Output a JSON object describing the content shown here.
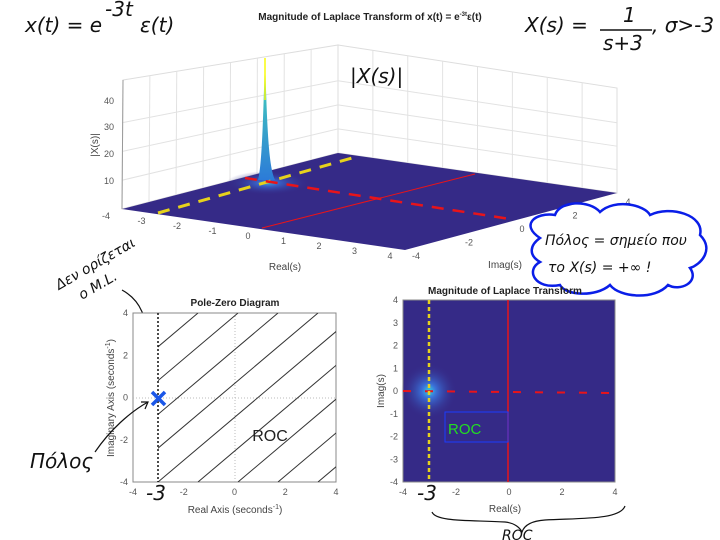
{
  "annotations": {
    "signal": "x(t) = e",
    "signal_exp": "-3t",
    "signal_tail": "ε(t)",
    "transform_lhs": "X(s) =",
    "transform_num": "1",
    "transform_den": "s+3",
    "transform_cond": ", σ>-3",
    "magnitude": "|X(s)|",
    "cloud_line1": "Πόλος = σημείο που",
    "cloud_line2": "το X(s) = +∞ !",
    "undefined_line1": "Δεν ορίζεται",
    "undefined_line2": "ο Μ.L.",
    "pole_label": "Πόλος",
    "minus3_left": "-3",
    "minus3_right": "-3",
    "roc_brace": "ROC"
  },
  "colors": {
    "surface": "#352a87",
    "peak": "#f9fb0e",
    "mesh": "#2c7bd8",
    "yellow": "#e6d21c",
    "red": "#e8141a",
    "pole": "#1a56e8",
    "cloud": "#0a1ee8",
    "roc_text": "#22dd22"
  },
  "chart_data": [
    {
      "type": "surface",
      "title": "Magnitude of Laplace Transform of x(t) = e",
      "title_exp": "-3t",
      "title_tail": "ε(t)",
      "xlabel": "Real(s)",
      "ylabel": "Imag(s)",
      "zlabel": "|X(s)|",
      "xlim": [
        -4,
        4
      ],
      "ylim": [
        -4,
        4
      ],
      "zlim": [
        0,
        48
      ],
      "xticks": [
        "-4",
        "-3",
        "-2",
        "-1",
        "0",
        "1",
        "2",
        "3",
        "4"
      ],
      "yticks": [
        "-4",
        "-2",
        "0",
        "2",
        "4"
      ],
      "zticks": [
        "10",
        "20",
        "30",
        "40"
      ],
      "pole": {
        "real": -3,
        "imag": 0
      },
      "grid": true
    },
    {
      "type": "scatter",
      "title": "Pole-Zero Diagram",
      "xlabel": "Real Axis (seconds",
      "xlabel_exp": "-1",
      "xlabel_tail": ")",
      "ylabel": "Imaginary Axis (seconds",
      "ylabel_exp": "-1",
      "ylabel_tail": ")",
      "xlim": [
        -4,
        4
      ],
      "ylim": [
        -4,
        4
      ],
      "xticks": [
        "-4",
        "-2",
        "0",
        "2",
        "4"
      ],
      "yticks": [
        "-4",
        "-2",
        "0",
        "2",
        "4"
      ],
      "poles": [
        {
          "real": -3,
          "imag": 0
        }
      ],
      "roc_boundary": -3,
      "roc_label": "ROC"
    },
    {
      "type": "heatmap",
      "title": "Magnitude of Laplace Transform",
      "xlabel": "Real(s)",
      "ylabel": "Imag(s)",
      "xlim": [
        -4,
        4
      ],
      "ylim": [
        -4,
        4
      ],
      "xticks": [
        "-4",
        "-2",
        "0",
        "2",
        "4"
      ],
      "yticks": [
        "-4",
        "-3",
        "-2",
        "-1",
        "0",
        "1",
        "2",
        "3",
        "4"
      ],
      "pole": {
        "real": -3,
        "imag": 0
      },
      "roc_boundary": -3,
      "roc_label": "ROC"
    }
  ]
}
